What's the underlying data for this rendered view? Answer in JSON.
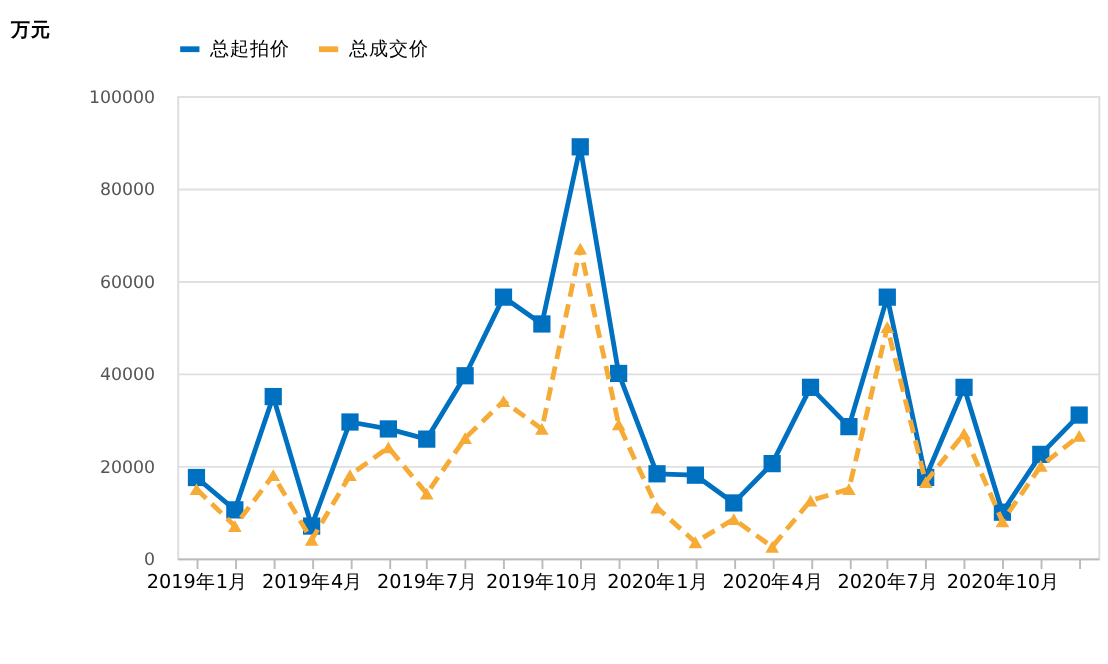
{
  "chart_data": {
    "type": "line",
    "ylabel": "万元",
    "categories": [
      "2019年1月",
      null,
      null,
      "2019年4月",
      null,
      null,
      "2019年7月",
      null,
      null,
      "2019年10月",
      null,
      null,
      "2020年1月",
      null,
      null,
      "2020年4月",
      null,
      null,
      "2020年7月",
      null,
      null,
      "2020年10月",
      null,
      null
    ],
    "series": [
      {
        "name": "总起拍价",
        "color": "#0070c0",
        "marker": "square",
        "line_style": "solid",
        "values": [
          17500,
          10500,
          35000,
          7000,
          29500,
          28000,
          25800,
          39500,
          56500,
          50700,
          89000,
          40000,
          18300,
          18000,
          12000,
          20500,
          37000,
          28500,
          56500,
          17500,
          37000,
          10000,
          22500,
          31000
        ]
      },
      {
        "name": "总成交价",
        "color": "#f5ab35",
        "marker": "triangle",
        "line_style": "dashed",
        "values": [
          15000,
          7000,
          18000,
          4000,
          18000,
          24000,
          14000,
          26000,
          34000,
          28000,
          67000,
          29000,
          11000,
          3500,
          8500,
          2500,
          12500,
          15000,
          50000,
          16500,
          27000,
          8000,
          20000,
          26500
        ]
      }
    ],
    "ylim": [
      0,
      100000
    ],
    "yticks": [
      0,
      20000,
      40000,
      60000,
      80000,
      100000
    ],
    "grid": "y",
    "legend": "top"
  }
}
